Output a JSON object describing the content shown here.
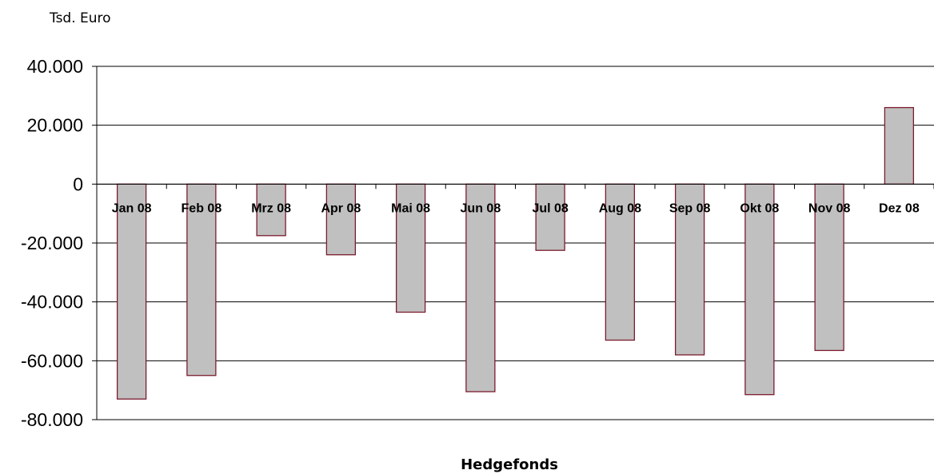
{
  "chart_data": {
    "type": "bar",
    "unit_label": "Tsd. Euro",
    "xlabel": "Hedgefonds",
    "categories": [
      "Jan 08",
      "Feb 08",
      "Mrz 08",
      "Apr 08",
      "Mai 08",
      "Jun 08",
      "Jul 08",
      "Aug 08",
      "Sep 08",
      "Okt 08",
      "Nov 08",
      "Dez 08"
    ],
    "values": [
      -73000,
      -65000,
      -17500,
      -24000,
      -43500,
      -70500,
      -22500,
      -53000,
      -58000,
      -71500,
      -56500,
      26000
    ],
    "ylim": [
      -80000,
      40000
    ],
    "yticks": [
      40000,
      20000,
      0,
      -20000,
      -40000,
      -60000,
      -80000
    ],
    "ytick_labels": [
      "40.000",
      "20.000",
      "0",
      "-20.000",
      "-40.000",
      "-60.000",
      "-80.000"
    ],
    "grid": true,
    "colors": {
      "bar_fill": "#c0c0c0",
      "bar_stroke": "#7b1c2e",
      "grid": "#000000"
    }
  }
}
